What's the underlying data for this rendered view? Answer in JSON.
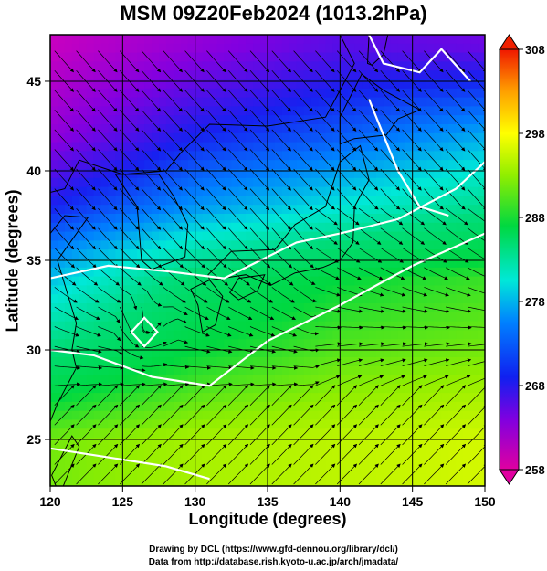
{
  "title": "MSM 09Z20Feb2024 (1013.2hPa)",
  "chart_data": {
    "type": "heatmap",
    "title": "MSM 09Z20Feb2024 (1013.2hPa)",
    "xlabel": "Longitude (degrees)",
    "ylabel": "Latitude  (degrees)",
    "xlim": [
      120,
      150
    ],
    "ylim": [
      22.4,
      47.6
    ],
    "x_ticks": [
      120,
      125,
      130,
      135,
      140,
      145,
      150
    ],
    "y_ticks": [
      25,
      30,
      35,
      40,
      45
    ],
    "grid": true,
    "colorbar": {
      "min": 258,
      "max": 308,
      "ticks": [
        258,
        268,
        278,
        288,
        298,
        308
      ],
      "colors": [
        "#d000b8",
        "#5a00e0",
        "#0020f0",
        "#00a8ff",
        "#00e8c0",
        "#00d840",
        "#b8f000",
        "#ffff00",
        "#ffa000",
        "#f02000"
      ]
    },
    "field_approx": [
      {
        "lat": 47,
        "lon_120": 259,
        "lon_130": 262,
        "lon_140": 265,
        "lon_150": 264
      },
      {
        "lat": 42,
        "lon_120": 262,
        "lon_130": 268,
        "lon_140": 271,
        "lon_150": 275
      },
      {
        "lat": 38,
        "lon_120": 268,
        "lon_130": 274,
        "lon_140": 278,
        "lon_150": 282
      },
      {
        "lat": 34,
        "lon_120": 276,
        "lon_130": 284,
        "lon_140": 288,
        "lon_150": 290
      },
      {
        "lat": 30,
        "lon_120": 283,
        "lon_130": 288,
        "lon_140": 291,
        "lon_150": 292
      },
      {
        "lat": 25,
        "lon_120": 292,
        "lon_130": 294,
        "lon_140": 295,
        "lon_150": 296
      }
    ],
    "overlays": [
      "wind streamlines",
      "white contour lines",
      "coastlines"
    ]
  },
  "credits": {
    "line1": "Drawing by DCL (https://www.gfd-dennou.org/library/dcl/)",
    "line2": "Data from http://database.rish.kyoto-u.ac.jp/arch/jmadata/"
  }
}
